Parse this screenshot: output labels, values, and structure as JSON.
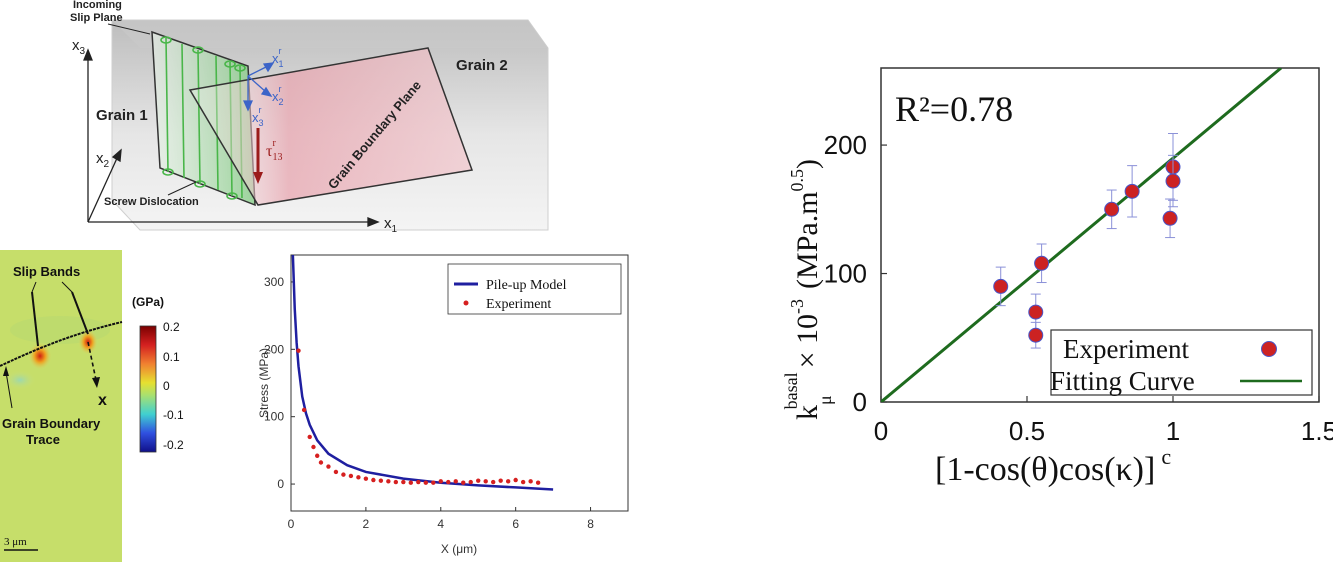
{
  "schematic": {
    "incoming_slip_plane": [
      "Incoming",
      "Slip Plane"
    ],
    "grain1": "Grain 1",
    "grain2": "Grain 2",
    "gb_plane": "Grain Boundary Plane",
    "screw_dislocation": "Screw Dislocation",
    "axes": {
      "x1": "x",
      "x1_sub": "1",
      "x2": "x",
      "x2_sub": "2",
      "x3": "x",
      "x3_sub": "3"
    },
    "local_axes": [
      {
        "base": "x",
        "sub": "1",
        "sup": "r"
      },
      {
        "base": "x",
        "sub": "2",
        "sup": "r"
      },
      {
        "base": "x",
        "sub": "3",
        "sup": "r"
      }
    ],
    "tau": {
      "base": "τ",
      "sub": "13",
      "sup": "r"
    },
    "colors": {
      "slip_plane": "#7fc97f",
      "gb_plane": "#e8a6b0",
      "tau": "#9b1b1b",
      "local_axes": "#3c64c8"
    }
  },
  "map": {
    "slip_bands": "Slip Bands",
    "x_label": "x",
    "gb_trace": [
      "Grain Boundary",
      "Trace"
    ],
    "scalebar": "3 μm",
    "colorbar": {
      "unit": "(GPa)",
      "ticks": [
        "0.2",
        "0.1",
        "0",
        "-0.1",
        "-0.2"
      ]
    }
  },
  "chart_data": [
    {
      "type": "line",
      "xlabel": "X (μm)",
      "ylabel": "Stress (MPa)",
      "xlim": [
        0,
        9
      ],
      "ylim": [
        -40,
        340
      ],
      "xticks": [
        0,
        2,
        4,
        6,
        8
      ],
      "yticks": [
        0,
        100,
        200,
        300
      ],
      "legend_position": "top-right",
      "series": [
        {
          "name": "Pile-up Model",
          "kind": "line",
          "color": "#1f1fa0",
          "x": [
            0.05,
            0.1,
            0.15,
            0.2,
            0.3,
            0.4,
            0.5,
            0.7,
            1.0,
            1.5,
            2.0,
            3.0,
            4.0,
            5.0,
            6.0,
            7.0
          ],
          "y": [
            340,
            260,
            210,
            175,
            130,
            105,
            88,
            65,
            45,
            28,
            18,
            8,
            2,
            -2,
            -5,
            -8
          ]
        },
        {
          "name": "Experiment",
          "kind": "scatter",
          "color": "#d62020",
          "x": [
            0.2,
            0.35,
            0.5,
            0.6,
            0.7,
            0.8,
            1.0,
            1.2,
            1.4,
            1.6,
            1.8,
            2.0,
            2.2,
            2.4,
            2.6,
            2.8,
            3.0,
            3.2,
            3.4,
            3.6,
            3.8,
            4.0,
            4.2,
            4.4,
            4.6,
            4.8,
            5.0,
            5.2,
            5.4,
            5.6,
            5.8,
            6.0,
            6.2,
            6.4,
            6.6
          ],
          "y": [
            198,
            110,
            70,
            55,
            42,
            32,
            26,
            18,
            14,
            12,
            10,
            8,
            6,
            5,
            4,
            3,
            3,
            2,
            3,
            2,
            2,
            4,
            3,
            4,
            2,
            3,
            5,
            4,
            3,
            5,
            4,
            6,
            3,
            4,
            2
          ]
        }
      ]
    },
    {
      "type": "scatter",
      "annotation": "R²=0.78",
      "xlabel": {
        "main": "[1-cos(θ)cos(κ)]",
        "sup": "c"
      },
      "ylabel": {
        "k": "k",
        "sub": "μ",
        "sup": "basal",
        "mid": "× 10",
        "exp": "-3",
        "unit": "(MPa.m",
        "unit_exp": "0.5",
        "close": ")"
      },
      "xlim": [
        0,
        1.5
      ],
      "ylim": [
        0,
        260
      ],
      "xticks": [
        "0",
        "0.5",
        "1",
        "1.5"
      ],
      "yticks": [
        "0",
        "100",
        "200"
      ],
      "legend_position": "bottom-right",
      "series": [
        {
          "name": "Experiment",
          "kind": "scatter",
          "color": "#cc2222",
          "edge": "#4a55c8",
          "x": [
            0.41,
            0.53,
            0.53,
            0.55,
            0.79,
            0.86,
            0.99,
            1.0,
            1.0
          ],
          "y": [
            90,
            70,
            52,
            108,
            150,
            164,
            143,
            183,
            172
          ],
          "yerr": [
            15,
            14,
            10,
            15,
            15,
            20,
            15,
            26,
            20
          ]
        },
        {
          "name": "Fitting Curve",
          "kind": "line",
          "color": "#1e6b1e",
          "x": [
            0,
            1.37
          ],
          "y": [
            0,
            260
          ]
        }
      ]
    }
  ]
}
